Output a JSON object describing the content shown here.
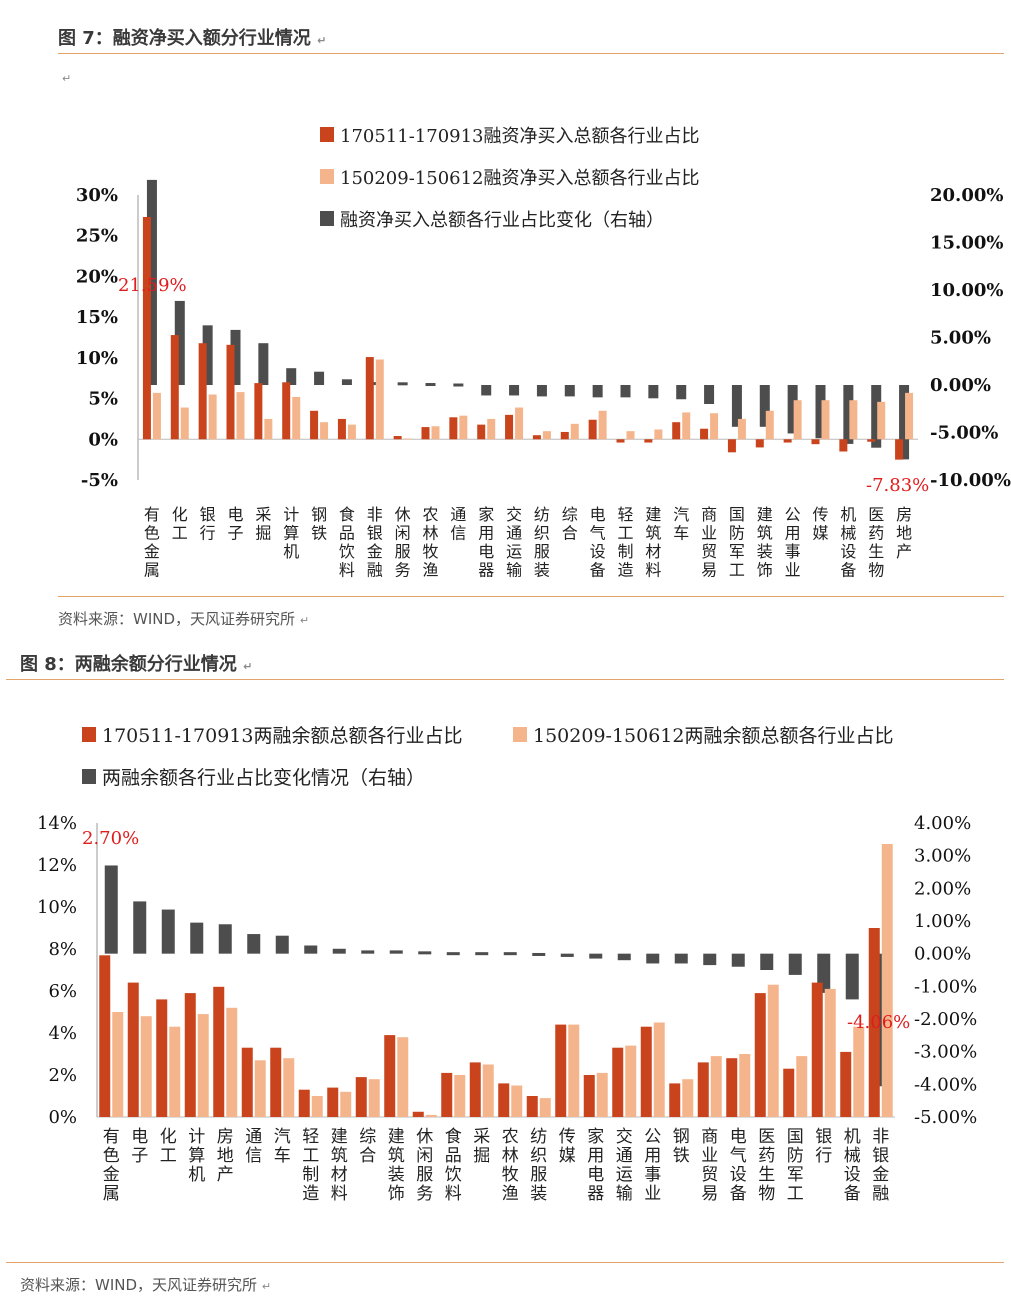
{
  "figure1": {
    "title": "图 7：融资净买入额分行业情况",
    "return_mark": "↵",
    "source": "资料来源：WIND，天风证券研究所",
    "chart_data": {
      "type": "bar",
      "categories": [
        "有色金属",
        "化工",
        "银行",
        "电子",
        "采掘",
        "计算机",
        "钢铁",
        "食品饮料",
        "非银金融",
        "休闲服务",
        "农林牧渔",
        "通信",
        "家用电器",
        "交通运输",
        "纺织服装",
        "综合",
        "电气设备",
        "轻工制造",
        "建筑材料",
        "汽车",
        "商业贸易",
        "国防军工",
        "建筑装饰",
        "公用事业",
        "传媒",
        "机械设备",
        "医药生物",
        "房地产"
      ],
      "series": [
        {
          "name": "170511-170913融资净买入总额各行业占比",
          "axis": "left",
          "color": "#c9441c",
          "values": [
            27.3,
            12.8,
            11.8,
            11.6,
            6.9,
            7.0,
            3.5,
            2.5,
            10.1,
            0.4,
            1.5,
            2.7,
            1.8,
            3.0,
            0.5,
            0.9,
            2.4,
            -0.4,
            -0.4,
            2.1,
            1.3,
            -1.6,
            -1.0,
            -0.4,
            -0.6,
            -1.5,
            -0.3,
            -2.5
          ]
        },
        {
          "name": "150209-150612融资净买入总额各行业占比",
          "axis": "left",
          "color": "#f5b58c",
          "values": [
            5.7,
            3.9,
            5.5,
            5.8,
            2.5,
            5.2,
            2.1,
            1.8,
            9.8,
            0.1,
            1.6,
            2.9,
            2.5,
            3.9,
            1.0,
            1.9,
            3.5,
            1.0,
            1.2,
            3.3,
            3.2,
            2.5,
            3.5,
            4.8,
            4.8,
            4.8,
            4.6,
            5.7
          ]
        },
        {
          "name": "融资净买入总额各行业占比变化（右轴）",
          "axis": "right",
          "color": "#4d4d4d",
          "values": [
            21.59,
            8.85,
            6.28,
            5.8,
            4.4,
            1.77,
            1.4,
            0.6,
            0.3,
            0.25,
            0.1,
            0.0,
            -1.1,
            -1.1,
            -1.2,
            -1.2,
            -1.3,
            -1.3,
            -1.4,
            -1.5,
            -2.0,
            -4.4,
            -4.4,
            -5.1,
            -5.6,
            -6.2,
            -6.6,
            -7.83
          ]
        }
      ],
      "left_axis": {
        "ylim": [
          -5,
          30
        ],
        "ticks": [
          "-5%",
          "0%",
          "5%",
          "10%",
          "15%",
          "20%",
          "25%",
          "30%"
        ]
      },
      "right_axis": {
        "ylim": [
          -10,
          20
        ],
        "ticks": [
          "-10.00%",
          "-5.00%",
          "0.00%",
          "5.00%",
          "10.00%",
          "15.00%",
          "20.00%"
        ]
      },
      "annotations": [
        {
          "label": "21.59%",
          "category": "有色金属"
        },
        {
          "label": "-7.83%",
          "category": "房地产"
        }
      ],
      "legend_position": "top-right",
      "grid": false
    }
  },
  "figure2": {
    "title": "图 8：两融余额分行业情况",
    "return_mark": "↵",
    "source": "资料来源：WIND，天风证券研究所",
    "chart_data": {
      "type": "bar",
      "categories": [
        "有色金属",
        "电子",
        "化工",
        "计算机",
        "房地产",
        "通信",
        "汽车",
        "轻工制造",
        "建筑材料",
        "综合",
        "建筑装饰",
        "休闲服务",
        "食品饮料",
        "采掘",
        "农林牧渔",
        "纺织服装",
        "传媒",
        "家用电器",
        "交通运输",
        "公用事业",
        "钢铁",
        "商业贸易",
        "电气设备",
        "医药生物",
        "国防军工",
        "银行",
        "机械设备",
        "非银金融"
      ],
      "series": [
        {
          "name": "170511-170913两融余额总额各行业占比",
          "axis": "left",
          "color": "#c9441c",
          "values": [
            7.7,
            6.4,
            5.6,
            5.9,
            6.2,
            3.3,
            3.3,
            1.3,
            1.4,
            1.9,
            3.9,
            0.25,
            2.1,
            2.6,
            1.6,
            1.0,
            4.4,
            2.0,
            3.3,
            4.3,
            1.6,
            2.6,
            2.8,
            5.9,
            2.3,
            6.4,
            3.1,
            9.0
          ]
        },
        {
          "name": "150209-150612两融余额总额各行业占比",
          "axis": "left",
          "color": "#f5b58c",
          "values": [
            5.0,
            4.8,
            4.3,
            4.9,
            5.2,
            2.7,
            2.8,
            1.0,
            1.2,
            1.8,
            3.8,
            0.1,
            2.0,
            2.5,
            1.5,
            0.9,
            4.4,
            2.1,
            3.4,
            4.5,
            1.8,
            2.9,
            3.0,
            6.3,
            2.9,
            6.1,
            4.3,
            13.0
          ]
        },
        {
          "name": "两融余额各行业占比变化情况（右轴）",
          "axis": "right",
          "color": "#4d4d4d",
          "values": [
            2.7,
            1.6,
            1.35,
            0.95,
            0.9,
            0.6,
            0.55,
            0.25,
            0.15,
            0.1,
            0.1,
            0.05,
            0.0,
            0.0,
            0.0,
            -0.05,
            -0.1,
            -0.15,
            -0.2,
            -0.3,
            -0.3,
            -0.35,
            -0.4,
            -0.5,
            -0.65,
            -1.2,
            -1.4,
            -4.06
          ]
        }
      ],
      "left_axis": {
        "ylim": [
          0,
          14
        ],
        "ticks": [
          "0%",
          "2%",
          "4%",
          "6%",
          "8%",
          "10%",
          "12%",
          "14%"
        ]
      },
      "right_axis": {
        "ylim": [
          -5,
          4
        ],
        "ticks": [
          "-5.00%",
          "-4.00%",
          "-3.00%",
          "-2.00%",
          "-1.00%",
          "0.00%",
          "1.00%",
          "2.00%",
          "3.00%",
          "4.00%"
        ]
      },
      "annotations": [
        {
          "label": "2.70%",
          "category": "有色金属"
        },
        {
          "label": "-4.06%",
          "category": "非银金融"
        }
      ],
      "legend_position": "top",
      "grid": false
    }
  }
}
